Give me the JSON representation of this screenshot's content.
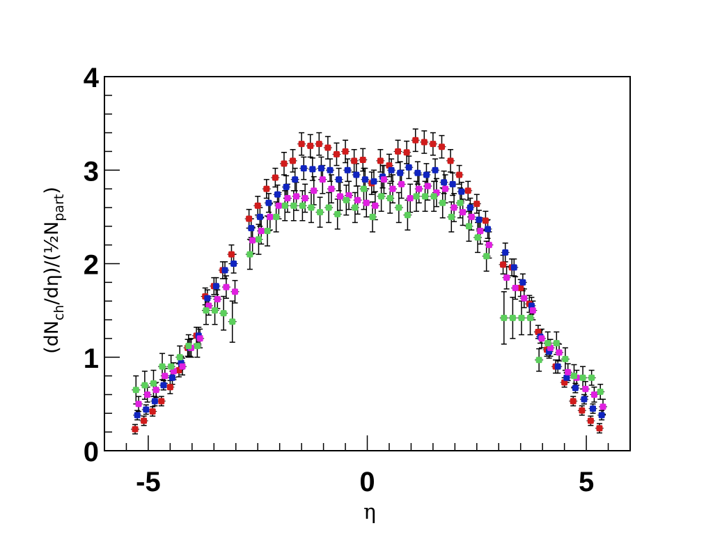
{
  "chart_data": {
    "type": "scatter",
    "xlabel": "η",
    "ylabel": {
      "prefix": "(dN",
      "sub1": "ch",
      "middle": "/dη)/(½N",
      "sub2": "part",
      "suffix": ")"
    },
    "xlim": [
      -6.0,
      6.0
    ],
    "ylim": [
      0,
      4
    ],
    "x_ticks": [
      -5,
      0,
      5
    ],
    "x_tick_labels": [
      "-5",
      "0",
      "5"
    ],
    "y_ticks": [
      0,
      1,
      2,
      3,
      4
    ],
    "y_tick_labels": [
      "0",
      "1",
      "2",
      "3",
      "4"
    ],
    "grid": false,
    "legend": "none",
    "series": [
      {
        "color": "#d01c1c",
        "x": [
          -5.3,
          -5.1,
          -4.9,
          -4.7,
          -4.5,
          -4.3,
          -4.1,
          -3.9,
          -3.7,
          -3.5,
          -3.3,
          -3.1,
          -2.7,
          -2.5,
          -2.3,
          -2.1,
          -1.9,
          -1.7,
          -1.5,
          -1.3,
          -1.1,
          -0.9,
          -0.7,
          -0.5,
          -0.3,
          -0.1,
          0.1,
          0.3,
          0.5,
          0.7,
          0.9,
          1.1,
          1.3,
          1.5,
          1.7,
          1.9,
          2.1,
          2.3,
          2.5,
          2.7,
          3.1,
          3.3,
          3.5,
          3.7,
          3.9,
          4.1,
          4.3,
          4.5,
          4.7,
          4.9,
          5.1,
          5.3
        ],
        "y": [
          0.23,
          0.32,
          0.42,
          0.53,
          0.68,
          0.86,
          1.1,
          1.23,
          1.65,
          1.76,
          1.93,
          2.1,
          2.48,
          2.62,
          2.8,
          2.92,
          3.07,
          3.1,
          3.28,
          3.26,
          3.28,
          3.24,
          3.17,
          3.2,
          3.1,
          3.11,
          2.86,
          3.1,
          3.05,
          3.2,
          3.19,
          3.32,
          3.3,
          3.28,
          3.25,
          3.1,
          2.95,
          2.78,
          2.64,
          2.46,
          1.99,
          1.96,
          1.74,
          1.57,
          1.27,
          1.08,
          0.9,
          0.73,
          0.53,
          0.43,
          0.32,
          0.24
        ],
        "err": [
          0.05,
          0.05,
          0.05,
          0.05,
          0.07,
          0.07,
          0.09,
          0.09,
          0.09,
          0.09,
          0.09,
          0.1,
          0.1,
          0.1,
          0.1,
          0.1,
          0.12,
          0.12,
          0.12,
          0.12,
          0.12,
          0.12,
          0.12,
          0.12,
          0.12,
          0.12,
          0.12,
          0.12,
          0.12,
          0.12,
          0.12,
          0.12,
          0.12,
          0.12,
          0.12,
          0.12,
          0.1,
          0.1,
          0.1,
          0.1,
          0.1,
          0.09,
          0.09,
          0.09,
          0.07,
          0.07,
          0.07,
          0.05,
          0.05,
          0.05,
          0.05,
          0.05
        ]
      },
      {
        "color": "#1024c0",
        "x": [
          -5.25,
          -5.05,
          -4.85,
          -4.65,
          -4.45,
          -4.25,
          -4.05,
          -3.85,
          -3.65,
          -3.45,
          -3.25,
          -3.05,
          -2.65,
          -2.45,
          -2.25,
          -2.05,
          -1.85,
          -1.65,
          -1.45,
          -1.25,
          -1.05,
          -0.85,
          -0.65,
          -0.45,
          -0.25,
          -0.05,
          0.15,
          0.35,
          0.55,
          0.75,
          0.95,
          1.15,
          1.35,
          1.55,
          1.75,
          1.95,
          2.15,
          2.35,
          2.55,
          2.75,
          3.15,
          3.35,
          3.55,
          3.75,
          3.95,
          4.15,
          4.35,
          4.55,
          4.75,
          4.95,
          5.15,
          5.35
        ],
        "y": [
          0.38,
          0.44,
          0.53,
          0.7,
          0.78,
          0.94,
          1.1,
          1.23,
          1.63,
          1.76,
          1.93,
          2.0,
          2.38,
          2.5,
          2.65,
          2.74,
          2.82,
          2.9,
          3.02,
          3.01,
          3.02,
          3.0,
          2.9,
          3.0,
          2.95,
          2.9,
          2.88,
          2.93,
          3.0,
          2.97,
          3.03,
          2.97,
          2.95,
          3.0,
          2.87,
          2.85,
          2.77,
          2.6,
          2.47,
          2.37,
          2.12,
          1.96,
          1.8,
          1.55,
          1.22,
          1.06,
          0.9,
          0.78,
          0.67,
          0.55,
          0.45,
          0.38
        ],
        "err": [
          0.05,
          0.05,
          0.05,
          0.05,
          0.07,
          0.07,
          0.09,
          0.09,
          0.09,
          0.09,
          0.09,
          0.1,
          0.1,
          0.1,
          0.1,
          0.1,
          0.12,
          0.12,
          0.12,
          0.12,
          0.12,
          0.12,
          0.12,
          0.12,
          0.12,
          0.12,
          0.12,
          0.12,
          0.12,
          0.12,
          0.12,
          0.12,
          0.12,
          0.12,
          0.12,
          0.12,
          0.1,
          0.1,
          0.1,
          0.1,
          0.1,
          0.09,
          0.09,
          0.09,
          0.07,
          0.07,
          0.07,
          0.05,
          0.05,
          0.05,
          0.05,
          0.05
        ]
      },
      {
        "color": "#e020e0",
        "x": [
          -5.22,
          -5.02,
          -4.82,
          -4.62,
          -4.42,
          -4.22,
          -4.02,
          -3.82,
          -3.62,
          -3.42,
          -3.22,
          -3.02,
          -2.62,
          -2.42,
          -2.22,
          -2.02,
          -1.82,
          -1.62,
          -1.42,
          -1.22,
          -1.02,
          -0.82,
          -0.62,
          -0.42,
          -0.22,
          -0.02,
          0.18,
          0.38,
          0.58,
          0.78,
          0.98,
          1.18,
          1.38,
          1.58,
          1.78,
          1.98,
          2.18,
          2.38,
          2.58,
          2.78,
          3.18,
          3.38,
          3.58,
          3.78,
          3.98,
          4.18,
          4.38,
          4.58,
          4.78,
          4.98,
          5.18,
          5.38
        ],
        "y": [
          0.5,
          0.6,
          0.65,
          0.8,
          0.85,
          0.9,
          1.1,
          1.2,
          1.55,
          1.62,
          1.75,
          1.7,
          2.25,
          2.35,
          2.5,
          2.62,
          2.7,
          2.72,
          2.7,
          2.78,
          2.9,
          2.8,
          2.72,
          2.73,
          2.68,
          2.65,
          2.62,
          2.9,
          2.8,
          2.85,
          2.7,
          2.8,
          2.83,
          2.76,
          2.8,
          2.6,
          2.55,
          2.5,
          2.35,
          2.2,
          1.85,
          1.74,
          1.63,
          1.5,
          1.2,
          1.1,
          1.05,
          0.84,
          0.78,
          0.66,
          0.6,
          0.47
        ],
        "err": [
          0.08,
          0.08,
          0.08,
          0.08,
          0.09,
          0.09,
          0.1,
          0.1,
          0.1,
          0.1,
          0.12,
          0.12,
          0.14,
          0.14,
          0.14,
          0.14,
          0.15,
          0.15,
          0.15,
          0.15,
          0.15,
          0.15,
          0.15,
          0.15,
          0.15,
          0.15,
          0.15,
          0.15,
          0.15,
          0.15,
          0.15,
          0.15,
          0.15,
          0.15,
          0.15,
          0.15,
          0.14,
          0.14,
          0.14,
          0.14,
          0.12,
          0.12,
          0.1,
          0.1,
          0.1,
          0.09,
          0.09,
          0.09,
          0.08,
          0.08,
          0.08,
          0.08
        ]
      },
      {
        "color": "#5ccf5c",
        "x": [
          -5.28,
          -5.08,
          -4.88,
          -4.68,
          -4.48,
          -4.28,
          -4.08,
          -3.88,
          -3.68,
          -3.48,
          -3.28,
          -3.08,
          -2.68,
          -2.48,
          -2.28,
          -2.08,
          -1.88,
          -1.68,
          -1.48,
          -1.28,
          -1.08,
          -0.88,
          -0.68,
          -0.48,
          -0.28,
          -0.08,
          0.12,
          0.32,
          0.52,
          0.72,
          0.92,
          1.12,
          1.32,
          1.52,
          1.72,
          1.92,
          2.12,
          2.32,
          2.52,
          2.72,
          3.12,
          3.32,
          3.52,
          3.72,
          3.92,
          4.12,
          4.32,
          4.52,
          4.72,
          4.92,
          5.12,
          5.32
        ],
        "y": [
          0.65,
          0.7,
          0.72,
          0.9,
          0.9,
          1.0,
          1.12,
          1.12,
          1.5,
          1.5,
          1.47,
          1.38,
          2.1,
          2.26,
          2.35,
          2.5,
          2.62,
          2.62,
          2.62,
          2.6,
          2.55,
          2.6,
          2.53,
          2.68,
          2.6,
          2.8,
          2.5,
          2.72,
          2.7,
          2.6,
          2.52,
          2.72,
          2.72,
          2.72,
          2.65,
          2.5,
          2.65,
          2.4,
          2.28,
          2.08,
          1.42,
          1.42,
          1.42,
          1.42,
          0.97,
          1.15,
          1.15,
          0.98,
          0.8,
          0.78,
          0.78,
          0.63
        ],
        "err": [
          0.15,
          0.15,
          0.14,
          0.14,
          0.12,
          0.12,
          0.12,
          0.12,
          0.15,
          0.15,
          0.18,
          0.22,
          0.16,
          0.16,
          0.16,
          0.16,
          0.16,
          0.16,
          0.16,
          0.16,
          0.16,
          0.16,
          0.16,
          0.16,
          0.16,
          0.22,
          0.16,
          0.16,
          0.16,
          0.16,
          0.16,
          0.16,
          0.16,
          0.16,
          0.16,
          0.16,
          0.16,
          0.16,
          0.16,
          0.16,
          0.28,
          0.22,
          0.18,
          0.18,
          0.12,
          0.12,
          0.12,
          0.12,
          0.12,
          0.12,
          0.08,
          0.08
        ]
      }
    ]
  }
}
